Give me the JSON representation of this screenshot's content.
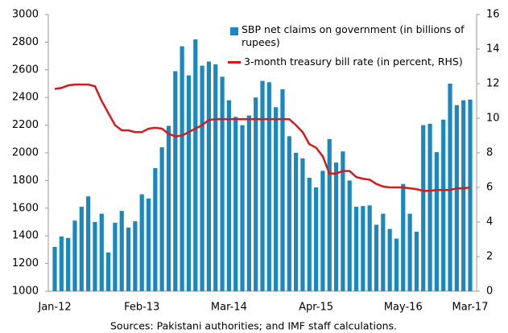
{
  "chart_data": {
    "type": "bar_line",
    "categories": [
      "Jan-12",
      null,
      null,
      null,
      null,
      null,
      null,
      null,
      null,
      null,
      null,
      null,
      null,
      "Feb-13",
      null,
      null,
      null,
      null,
      null,
      null,
      null,
      null,
      null,
      null,
      null,
      null,
      "Mar-14",
      null,
      null,
      null,
      null,
      null,
      null,
      null,
      null,
      null,
      null,
      null,
      null,
      "Apr-15",
      null,
      null,
      null,
      null,
      null,
      null,
      null,
      null,
      null,
      null,
      null,
      null,
      "May-16",
      null,
      null,
      null,
      null,
      null,
      null,
      null,
      null,
      null,
      "Mar-17"
    ],
    "series": [
      {
        "name": "SBP net claims on government (in billions of rupees)",
        "color": "#1a87bf",
        "kind": "bar",
        "values": [
          1320,
          1395,
          1385,
          1510,
          1610,
          1685,
          1500,
          1560,
          1280,
          1495,
          1580,
          1460,
          1505,
          1700,
          1670,
          1890,
          2040,
          2195,
          2590,
          2770,
          2560,
          2820,
          2630,
          2660,
          2640,
          2550,
          2380,
          2260,
          2200,
          2270,
          2400,
          2520,
          2510,
          2330,
          2460,
          2120,
          2000,
          1960,
          1820,
          1750,
          1870,
          2100,
          1930,
          2010,
          1800,
          1610,
          1615,
          1620,
          1480,
          1560,
          1450,
          1380,
          1775,
          1560,
          1430,
          2200,
          2210,
          2005,
          2240,
          2500,
          2345,
          2380,
          2385
        ]
      },
      {
        "name": "3-month treasury bill rate (in percent, RHS)",
        "color": "#d7191c",
        "kind": "line",
        "axis": "y2",
        "values": [
          11.7,
          11.75,
          11.9,
          11.95,
          11.95,
          11.95,
          11.85,
          11.0,
          10.3,
          9.6,
          9.3,
          9.3,
          9.2,
          9.2,
          9.4,
          9.45,
          9.4,
          9.1,
          8.95,
          9.0,
          9.2,
          9.4,
          9.6,
          9.9,
          9.95,
          9.95,
          9.95,
          9.95,
          9.95,
          9.95,
          9.95,
          9.95,
          9.95,
          9.95,
          9.95,
          9.95,
          9.6,
          9.2,
          8.5,
          8.3,
          7.8,
          6.8,
          6.8,
          6.95,
          6.95,
          6.6,
          6.5,
          6.45,
          6.2,
          6.05,
          6.0,
          6.0,
          6.0,
          5.95,
          5.9,
          5.8,
          5.8,
          5.85,
          5.85,
          5.85,
          5.95,
          5.95,
          6.0
        ]
      }
    ],
    "ylim": [
      1000,
      3000
    ],
    "yticks": [
      1000,
      1200,
      1400,
      1600,
      1800,
      2000,
      2200,
      2400,
      2600,
      2800,
      3000
    ],
    "y2lim": [
      0,
      16
    ],
    "y2ticks": [
      0,
      2,
      4,
      6,
      8,
      10,
      12,
      14,
      16
    ],
    "legend": "top-right",
    "source": "Sources: Pakistani authorities; and IMF staff calculations."
  }
}
